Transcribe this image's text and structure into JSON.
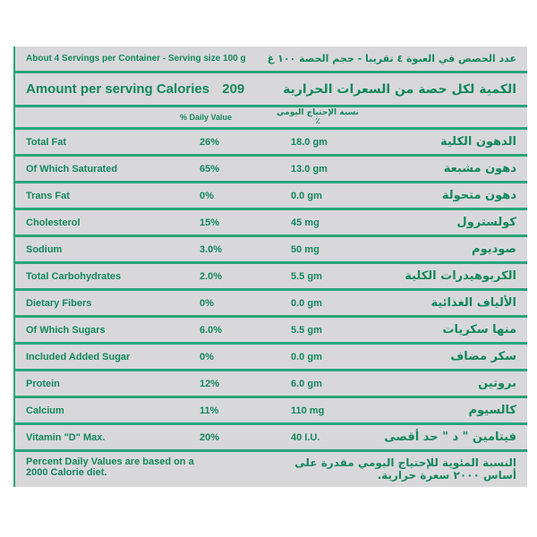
{
  "header": {
    "servings_en": "About 4 Servings per Container - Serving size 100 g",
    "servings_ar": "عدد الحصص في العبوة ٤ تقريبا - حجم الحصة ١٠٠ غ",
    "amount_en": "Amount per serving Calories",
    "calories": "209",
    "amount_ar": "الكمية لكل حصة من السعرات الحرارية",
    "daily_value_en": "% Daily Value",
    "daily_value_ar": "نسبة الإحتياج اليومي ٪"
  },
  "rows": [
    {
      "en": "Total Fat",
      "pct": "26%",
      "amount": "18.0 gm",
      "ar": "الدهون الكلية"
    },
    {
      "en": "Of Which Saturated",
      "pct": "65%",
      "amount": "13.0 gm",
      "ar": "دهون مشبعة"
    },
    {
      "en": "Trans Fat",
      "pct": "0%",
      "amount": "0.0 gm",
      "ar": "دهون متحولة"
    },
    {
      "en": "Cholesterol",
      "pct": "15%",
      "amount": "45 mg",
      "ar": "كولسترول"
    },
    {
      "en": "Sodium",
      "pct": "3.0%",
      "amount": "50 mg",
      "ar": "صوديوم"
    },
    {
      "en": "Total Carbohydrates",
      "pct": "2.0%",
      "amount": "5.5 gm",
      "ar": "الكربوهيدرات الكلية"
    },
    {
      "en": "Dietary Fibers",
      "pct": "0%",
      "amount": "0.0 gm",
      "ar": "الألياف الغذائية"
    },
    {
      "en": "Of Which Sugars",
      "pct": "6.0%",
      "amount": "5.5 gm",
      "ar": "منها سكريات"
    },
    {
      "en": "Included Added Sugar",
      "pct": "0%",
      "amount": "0.0 gm",
      "ar": "سكر مضاف"
    },
    {
      "en": "Protein",
      "pct": "12%",
      "amount": "6.0 gm",
      "ar": "بروتين"
    },
    {
      "en": "Calcium",
      "pct": "11%",
      "amount": "110 mg",
      "ar": "كالسيوم"
    },
    {
      "en": "Vitamin \"D\" Max.",
      "pct": "20%",
      "amount": "40 I.U.",
      "ar": "فيتامين \" د \" حد أقصى"
    }
  ],
  "footer": {
    "en_line1": "Percent Daily Values are based on a",
    "en_line2": "2000 Calorie diet.",
    "ar_line1": "النسبة المئوية للإحتياج اليومي مقدرة على",
    "ar_line2": "أساس ٢٠٠٠ سعرة حرارية."
  },
  "colors": {
    "text": "#14885c",
    "rule": "#2aa57a",
    "background": "#d8d8db"
  }
}
